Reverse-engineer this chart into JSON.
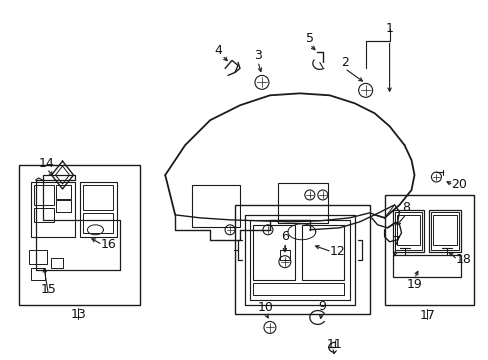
{
  "bg_color": "#ffffff",
  "fig_width": 4.89,
  "fig_height": 3.6,
  "dpi": 100,
  "line_color": "#1a1a1a",
  "text_color": "#111111",
  "font_size_num": 9
}
